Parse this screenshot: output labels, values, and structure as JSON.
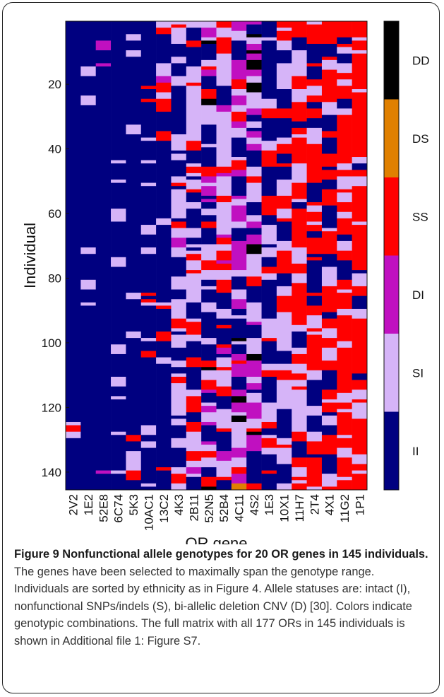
{
  "chart_data": {
    "type": "heatmap",
    "xlabel": "OR gene",
    "ylabel": "Individual",
    "genes": [
      "2V2",
      "1E2",
      "52E8",
      "6C74",
      "5K3",
      "10AC1",
      "13C2",
      "4K3",
      "2B11",
      "52N5",
      "52B4",
      "4C11",
      "4S2",
      "1E3",
      "10X1",
      "11H7",
      "2T4",
      "4X1",
      "11G2",
      "1P1"
    ],
    "n_individuals": 145,
    "y_ticks": [
      20,
      40,
      60,
      80,
      100,
      120,
      140
    ],
    "categories": [
      "II",
      "SI",
      "DI",
      "SS",
      "DS",
      "DD"
    ],
    "colors": {
      "II": "#000080",
      "SI": "#d6b4f8",
      "DI": "#c010c0",
      "SS": "#ff0000",
      "DS": "#e08000",
      "DD": "#000000"
    },
    "legend_placement": "right",
    "category_frequencies": [
      {
        "gene": "2V2",
        "II": 0.93,
        "SI": 0.06,
        "DI": 0.0,
        "SS": 0.01,
        "DS": 0.0,
        "DD": 0.0
      },
      {
        "gene": "1E2",
        "II": 0.9,
        "SI": 0.08,
        "DI": 0.0,
        "SS": 0.02,
        "DS": 0.0,
        "DD": 0.0
      },
      {
        "gene": "52E8",
        "II": 0.88,
        "SI": 0.05,
        "DI": 0.06,
        "SS": 0.0,
        "DS": 0.0,
        "DD": 0.01
      },
      {
        "gene": "6C74",
        "II": 0.82,
        "SI": 0.16,
        "DI": 0.0,
        "SS": 0.02,
        "DS": 0.0,
        "DD": 0.0
      },
      {
        "gene": "5K3",
        "II": 0.74,
        "SI": 0.2,
        "DI": 0.0,
        "SS": 0.06,
        "DS": 0.0,
        "DD": 0.0
      },
      {
        "gene": "10AC1",
        "II": 0.7,
        "SI": 0.22,
        "DI": 0.0,
        "SS": 0.08,
        "DS": 0.0,
        "DD": 0.0
      },
      {
        "gene": "13C2",
        "II": 0.68,
        "SI": 0.14,
        "DI": 0.02,
        "SS": 0.16,
        "DS": 0.0,
        "DD": 0.0
      },
      {
        "gene": "4K3",
        "II": 0.36,
        "SI": 0.52,
        "DI": 0.02,
        "SS": 0.1,
        "DS": 0.0,
        "DD": 0.0
      },
      {
        "gene": "2B11",
        "II": 0.32,
        "SI": 0.46,
        "DI": 0.02,
        "SS": 0.2,
        "DS": 0.0,
        "DD": 0.0
      },
      {
        "gene": "52N5",
        "II": 0.3,
        "SI": 0.36,
        "DI": 0.16,
        "SS": 0.12,
        "DS": 0.0,
        "DD": 0.06
      },
      {
        "gene": "52B4",
        "II": 0.22,
        "SI": 0.4,
        "DI": 0.06,
        "SS": 0.32,
        "DS": 0.0,
        "DD": 0.0
      },
      {
        "gene": "4C11",
        "II": 0.2,
        "SI": 0.3,
        "DI": 0.3,
        "SS": 0.08,
        "DS": 0.02,
        "DD": 0.1
      },
      {
        "gene": "4S2",
        "II": 0.22,
        "SI": 0.34,
        "DI": 0.28,
        "SS": 0.08,
        "DS": 0.0,
        "DD": 0.08
      },
      {
        "gene": "1E3",
        "II": 0.38,
        "SI": 0.3,
        "DI": 0.0,
        "SS": 0.32,
        "DS": 0.0,
        "DD": 0.0
      },
      {
        "gene": "10X1",
        "II": 0.16,
        "SI": 0.44,
        "DI": 0.0,
        "SS": 0.4,
        "DS": 0.0,
        "DD": 0.0
      },
      {
        "gene": "11H7",
        "II": 0.12,
        "SI": 0.34,
        "DI": 0.0,
        "SS": 0.54,
        "DS": 0.0,
        "DD": 0.0
      },
      {
        "gene": "2T4",
        "II": 0.16,
        "SI": 0.24,
        "DI": 0.0,
        "SS": 0.6,
        "DS": 0.0,
        "DD": 0.0
      },
      {
        "gene": "4X1",
        "II": 0.12,
        "SI": 0.28,
        "DI": 0.0,
        "SS": 0.6,
        "DS": 0.0,
        "DD": 0.0
      },
      {
        "gene": "11G2",
        "II": 0.12,
        "SI": 0.26,
        "DI": 0.0,
        "SS": 0.62,
        "DS": 0.0,
        "DD": 0.0
      },
      {
        "gene": "1P1",
        "II": 0.1,
        "SI": 0.24,
        "DI": 0.0,
        "SS": 0.66,
        "DS": 0.0,
        "DD": 0.0
      }
    ]
  },
  "caption": {
    "label": "Figure 9 Nonfunctional allele genotypes for 20 OR genes in 145 individuals.",
    "text": "The genes have been selected to maximally span the genotype range. Individuals are sorted by ethnicity as in Figure 4. Allele statuses are: intact (I), nonfunctional SNPs/indels (S), bi-allelic deletion CNV (D) [30]. Colors indicate genotypic combinations. The full matrix with all 177 ORs in 145 individuals is shown in Additional file 1: Figure S7."
  }
}
